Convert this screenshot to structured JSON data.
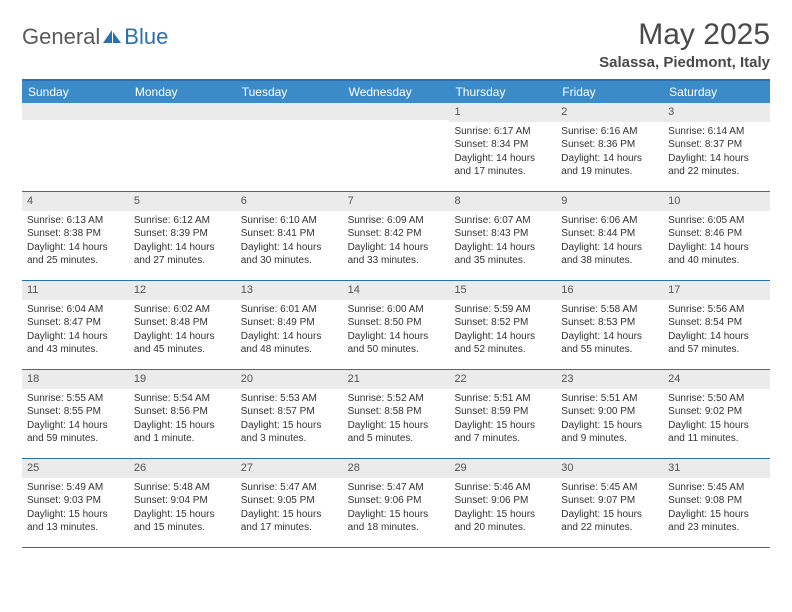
{
  "logo": {
    "text1": "General",
    "text2": "Blue"
  },
  "title": "May 2025",
  "location": "Salassa, Piedmont, Italy",
  "colors": {
    "header_bar": "#3b8bc9",
    "border": "#2a6fb0",
    "daynum_bg": "#ebebeb",
    "text": "#333333"
  },
  "daynames": [
    "Sunday",
    "Monday",
    "Tuesday",
    "Wednesday",
    "Thursday",
    "Friday",
    "Saturday"
  ],
  "weeks": [
    [
      {
        "n": "",
        "sr": "",
        "ss": "",
        "dl": ""
      },
      {
        "n": "",
        "sr": "",
        "ss": "",
        "dl": ""
      },
      {
        "n": "",
        "sr": "",
        "ss": "",
        "dl": ""
      },
      {
        "n": "",
        "sr": "",
        "ss": "",
        "dl": ""
      },
      {
        "n": "1",
        "sr": "Sunrise: 6:17 AM",
        "ss": "Sunset: 8:34 PM",
        "dl": "Daylight: 14 hours and 17 minutes."
      },
      {
        "n": "2",
        "sr": "Sunrise: 6:16 AM",
        "ss": "Sunset: 8:36 PM",
        "dl": "Daylight: 14 hours and 19 minutes."
      },
      {
        "n": "3",
        "sr": "Sunrise: 6:14 AM",
        "ss": "Sunset: 8:37 PM",
        "dl": "Daylight: 14 hours and 22 minutes."
      }
    ],
    [
      {
        "n": "4",
        "sr": "Sunrise: 6:13 AM",
        "ss": "Sunset: 8:38 PM",
        "dl": "Daylight: 14 hours and 25 minutes."
      },
      {
        "n": "5",
        "sr": "Sunrise: 6:12 AM",
        "ss": "Sunset: 8:39 PM",
        "dl": "Daylight: 14 hours and 27 minutes."
      },
      {
        "n": "6",
        "sr": "Sunrise: 6:10 AM",
        "ss": "Sunset: 8:41 PM",
        "dl": "Daylight: 14 hours and 30 minutes."
      },
      {
        "n": "7",
        "sr": "Sunrise: 6:09 AM",
        "ss": "Sunset: 8:42 PM",
        "dl": "Daylight: 14 hours and 33 minutes."
      },
      {
        "n": "8",
        "sr": "Sunrise: 6:07 AM",
        "ss": "Sunset: 8:43 PM",
        "dl": "Daylight: 14 hours and 35 minutes."
      },
      {
        "n": "9",
        "sr": "Sunrise: 6:06 AM",
        "ss": "Sunset: 8:44 PM",
        "dl": "Daylight: 14 hours and 38 minutes."
      },
      {
        "n": "10",
        "sr": "Sunrise: 6:05 AM",
        "ss": "Sunset: 8:46 PM",
        "dl": "Daylight: 14 hours and 40 minutes."
      }
    ],
    [
      {
        "n": "11",
        "sr": "Sunrise: 6:04 AM",
        "ss": "Sunset: 8:47 PM",
        "dl": "Daylight: 14 hours and 43 minutes."
      },
      {
        "n": "12",
        "sr": "Sunrise: 6:02 AM",
        "ss": "Sunset: 8:48 PM",
        "dl": "Daylight: 14 hours and 45 minutes."
      },
      {
        "n": "13",
        "sr": "Sunrise: 6:01 AM",
        "ss": "Sunset: 8:49 PM",
        "dl": "Daylight: 14 hours and 48 minutes."
      },
      {
        "n": "14",
        "sr": "Sunrise: 6:00 AM",
        "ss": "Sunset: 8:50 PM",
        "dl": "Daylight: 14 hours and 50 minutes."
      },
      {
        "n": "15",
        "sr": "Sunrise: 5:59 AM",
        "ss": "Sunset: 8:52 PM",
        "dl": "Daylight: 14 hours and 52 minutes."
      },
      {
        "n": "16",
        "sr": "Sunrise: 5:58 AM",
        "ss": "Sunset: 8:53 PM",
        "dl": "Daylight: 14 hours and 55 minutes."
      },
      {
        "n": "17",
        "sr": "Sunrise: 5:56 AM",
        "ss": "Sunset: 8:54 PM",
        "dl": "Daylight: 14 hours and 57 minutes."
      }
    ],
    [
      {
        "n": "18",
        "sr": "Sunrise: 5:55 AM",
        "ss": "Sunset: 8:55 PM",
        "dl": "Daylight: 14 hours and 59 minutes."
      },
      {
        "n": "19",
        "sr": "Sunrise: 5:54 AM",
        "ss": "Sunset: 8:56 PM",
        "dl": "Daylight: 15 hours and 1 minute."
      },
      {
        "n": "20",
        "sr": "Sunrise: 5:53 AM",
        "ss": "Sunset: 8:57 PM",
        "dl": "Daylight: 15 hours and 3 minutes."
      },
      {
        "n": "21",
        "sr": "Sunrise: 5:52 AM",
        "ss": "Sunset: 8:58 PM",
        "dl": "Daylight: 15 hours and 5 minutes."
      },
      {
        "n": "22",
        "sr": "Sunrise: 5:51 AM",
        "ss": "Sunset: 8:59 PM",
        "dl": "Daylight: 15 hours and 7 minutes."
      },
      {
        "n": "23",
        "sr": "Sunrise: 5:51 AM",
        "ss": "Sunset: 9:00 PM",
        "dl": "Daylight: 15 hours and 9 minutes."
      },
      {
        "n": "24",
        "sr": "Sunrise: 5:50 AM",
        "ss": "Sunset: 9:02 PM",
        "dl": "Daylight: 15 hours and 11 minutes."
      }
    ],
    [
      {
        "n": "25",
        "sr": "Sunrise: 5:49 AM",
        "ss": "Sunset: 9:03 PM",
        "dl": "Daylight: 15 hours and 13 minutes."
      },
      {
        "n": "26",
        "sr": "Sunrise: 5:48 AM",
        "ss": "Sunset: 9:04 PM",
        "dl": "Daylight: 15 hours and 15 minutes."
      },
      {
        "n": "27",
        "sr": "Sunrise: 5:47 AM",
        "ss": "Sunset: 9:05 PM",
        "dl": "Daylight: 15 hours and 17 minutes."
      },
      {
        "n": "28",
        "sr": "Sunrise: 5:47 AM",
        "ss": "Sunset: 9:06 PM",
        "dl": "Daylight: 15 hours and 18 minutes."
      },
      {
        "n": "29",
        "sr": "Sunrise: 5:46 AM",
        "ss": "Sunset: 9:06 PM",
        "dl": "Daylight: 15 hours and 20 minutes."
      },
      {
        "n": "30",
        "sr": "Sunrise: 5:45 AM",
        "ss": "Sunset: 9:07 PM",
        "dl": "Daylight: 15 hours and 22 minutes."
      },
      {
        "n": "31",
        "sr": "Sunrise: 5:45 AM",
        "ss": "Sunset: 9:08 PM",
        "dl": "Daylight: 15 hours and 23 minutes."
      }
    ]
  ]
}
